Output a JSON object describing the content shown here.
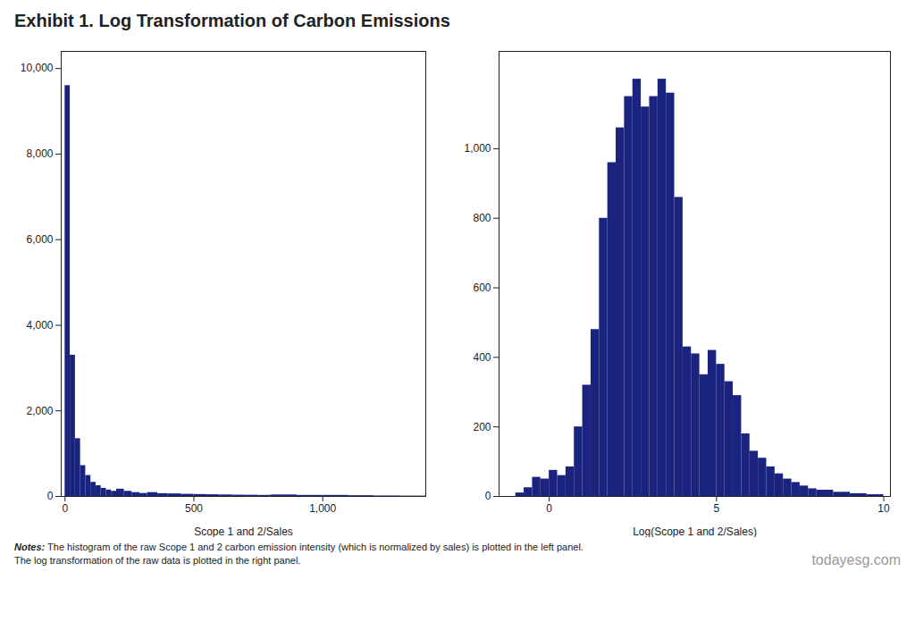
{
  "title": "Exhibit 1. Log Transformation of Carbon Emissions",
  "notes": [
    "Notes:",
    " The histogram of the raw Scope 1 and 2 carbon emission intensity (which is normalized by sales) is plotted in the left panel.\nThe log transformation of the raw data is plotted in the right panel."
  ],
  "watermark": "todayesg.com",
  "chart_data": [
    {
      "type": "histogram",
      "xlabel": "Scope 1 and 2/Sales",
      "color": "#1a237e",
      "grid": false,
      "bins": [
        0,
        20,
        40,
        60,
        80,
        100,
        120,
        140,
        160,
        180,
        200,
        230,
        260,
        290,
        320,
        360,
        400,
        450,
        500,
        550,
        600,
        650,
        700,
        750,
        800,
        900,
        1000,
        1100,
        1200,
        1300,
        1400
      ],
      "counts": [
        9600,
        3300,
        1350,
        720,
        490,
        330,
        250,
        190,
        150,
        120,
        170,
        120,
        90,
        70,
        90,
        65,
        60,
        50,
        45,
        40,
        35,
        30,
        28,
        25,
        35,
        25,
        25,
        18,
        12,
        8
      ],
      "xlim": [
        -15,
        1400
      ],
      "ylim": [
        0,
        10400
      ],
      "xticks": [
        0,
        500,
        {
          "value": 1000,
          "label": "1,000"
        }
      ],
      "yticks": [
        0,
        {
          "value": 2000,
          "label": "2,000"
        },
        {
          "value": 4000,
          "label": "4,000"
        },
        {
          "value": 6000,
          "label": "6,000"
        },
        {
          "value": 8000,
          "label": "8,000"
        },
        {
          "value": 10000,
          "label": "10,000"
        }
      ]
    },
    {
      "type": "histogram",
      "xlabel": "Log(Scope 1 and 2/Sales)",
      "color": "#1a237e",
      "grid": false,
      "bins": [
        -1.0,
        -0.75,
        -0.5,
        -0.25,
        0.0,
        0.25,
        0.5,
        0.75,
        1.0,
        1.25,
        1.5,
        1.75,
        2.0,
        2.25,
        2.5,
        2.75,
        3.0,
        3.25,
        3.5,
        3.75,
        4.0,
        4.25,
        4.5,
        4.75,
        5.0,
        5.25,
        5.5,
        5.75,
        6.0,
        6.25,
        6.5,
        6.75,
        7.0,
        7.25,
        7.5,
        7.75,
        8.0,
        8.5,
        9.0,
        9.5,
        10.0
      ],
      "counts": [
        10,
        25,
        55,
        50,
        75,
        60,
        85,
        200,
        320,
        480,
        800,
        960,
        1060,
        1150,
        1200,
        1120,
        1150,
        1200,
        1160,
        860,
        430,
        410,
        350,
        420,
        380,
        330,
        290,
        180,
        130,
        110,
        85,
        65,
        50,
        40,
        30,
        22,
        18,
        12,
        8,
        5
      ],
      "xlim": [
        -1.5,
        10.2
      ],
      "ylim": [
        0,
        1280
      ],
      "xticks": [
        0,
        5,
        10
      ],
      "yticks": [
        0,
        200,
        400,
        600,
        800,
        {
          "value": 1000,
          "label": "1,000"
        }
      ]
    }
  ]
}
